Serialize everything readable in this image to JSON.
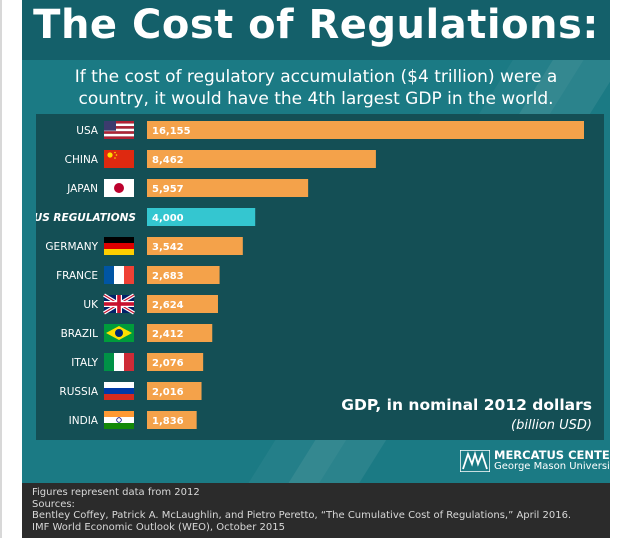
{
  "title": "The Cost of Regulations:",
  "subtitle_lines": [
    "If the cost of regulatory accumulation ($4 trillion) were a",
    "country, it would have the 4th largest GDP in the world."
  ],
  "colors": {
    "background": "#1b7a84",
    "panel": "#144f55",
    "bar": "#f4a24a",
    "highlight_bar": "#34c6d0"
  },
  "chart_data": {
    "type": "bar",
    "orientation": "horizontal",
    "categories": [
      "USA",
      "CHINA",
      "JAPAN",
      "US REGULATIONS",
      "GERMANY",
      "FRANCE",
      "UK",
      "BRAZIL",
      "ITALY",
      "RUSSIA",
      "INDIA"
    ],
    "values": [
      16155,
      8462,
      5957,
      4000,
      3542,
      2683,
      2624,
      2412,
      2076,
      2016,
      1836
    ],
    "value_labels": [
      "16,155",
      "8,462",
      "5,957",
      "4,000",
      "3,542",
      "2,683",
      "2,624",
      "2,412",
      "2,076",
      "2,016",
      "1,836"
    ],
    "flags": [
      "usa-flag",
      "china-flag",
      "japan-flag",
      "",
      "germany-flag",
      "france-flag",
      "uk-flag",
      "brazil-flag",
      "italy-flag",
      "russia-flag",
      "india-flag"
    ],
    "highlight": "US REGULATIONS",
    "xlim": [
      0,
      16155
    ],
    "grid": false,
    "xlabel": "GDP, in nominal 2012 dollars",
    "unit": "(billion USD)"
  },
  "logo": {
    "name": "MERCATUS CENTER",
    "sub": "George Mason University",
    "icon": "mercatus-logo-icon"
  },
  "footer": {
    "note": "Figures represent data from 2012",
    "sources_label": "Sources:",
    "sources": [
      "Bentley Coffey, Patrick A. McLaughlin, and Pietro Peretto, “The Cumulative Cost of Regulations,” April 2016.",
      "IMF World Economic Outlook (WEO), October 2015"
    ]
  }
}
